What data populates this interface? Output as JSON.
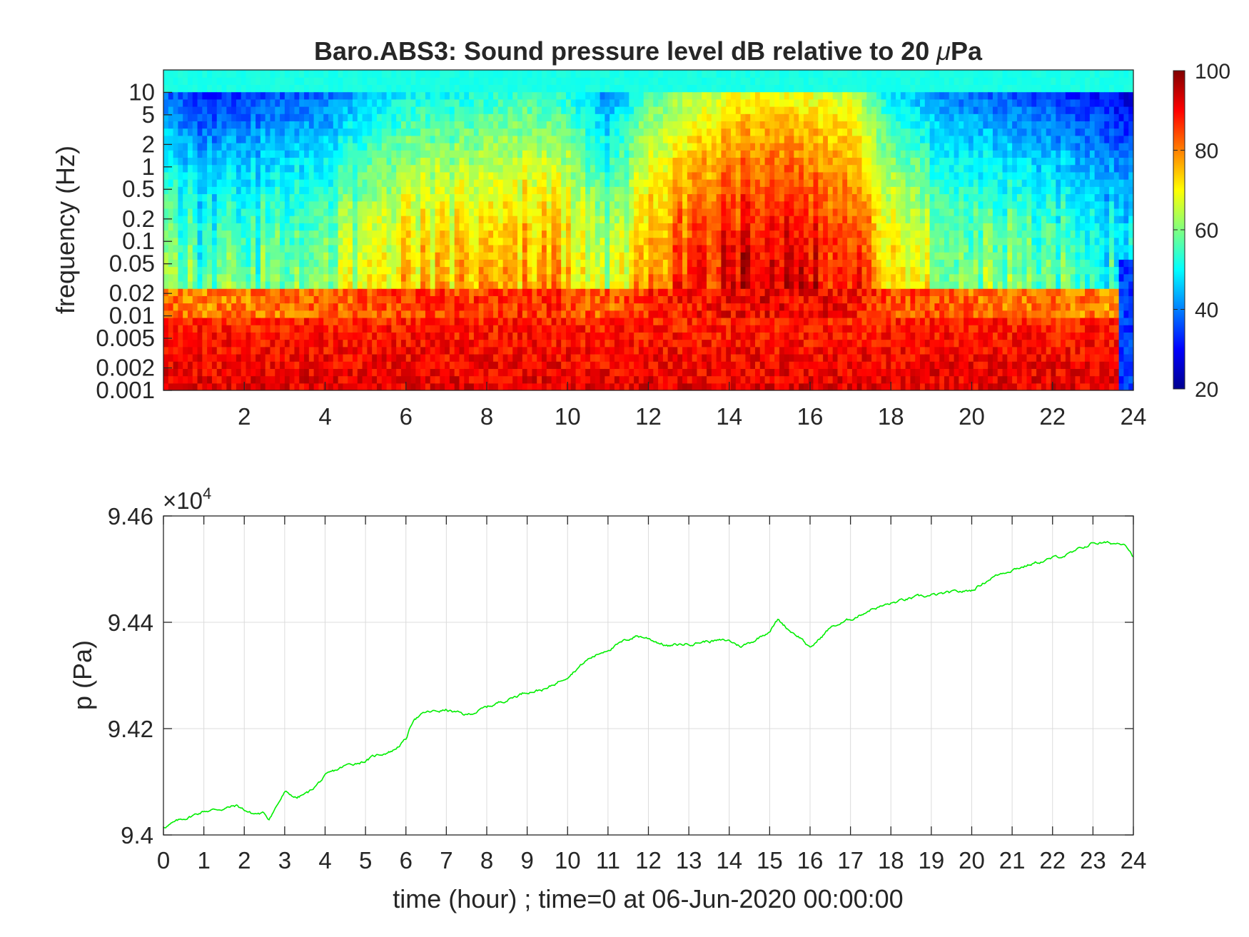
{
  "chart_data": [
    {
      "type": "heatmap",
      "title": "Baro.ABS3: Sound pressure level dB relative to 20 μPa",
      "title_parts": [
        "Baro.ABS3: Sound pressure level dB relative to 20 ",
        "μ",
        "Pa"
      ],
      "ylabel": "frequency (Hz)",
      "xlabel": "",
      "x_scale": "linear",
      "y_scale": "log",
      "xlim": [
        0,
        24
      ],
      "ylim": [
        0.001,
        20
      ],
      "x_ticks": [
        2,
        4,
        6,
        8,
        10,
        12,
        14,
        16,
        18,
        20,
        22,
        24
      ],
      "y_ticks": [
        0.001,
        0.002,
        0.005,
        0.01,
        0.02,
        0.05,
        0.1,
        0.2,
        0.5,
        1,
        2,
        5,
        10
      ],
      "y_tick_labels": [
        "0.001",
        "0.002",
        "0.005",
        "0.01",
        "0.02",
        "0.05",
        "0.1",
        "0.2",
        "0.5",
        "1",
        "2",
        "5",
        "10"
      ],
      "colormap": "jet",
      "clim": [
        20,
        100
      ],
      "colorbar_ticks": [
        20,
        40,
        60,
        80,
        100
      ],
      "colorbar_position": "right",
      "hourly_energy_profile_db": {
        "hour": [
          0,
          1,
          2,
          3,
          4,
          5,
          6,
          7,
          8,
          9,
          10,
          11,
          12,
          13,
          14,
          15,
          16,
          17,
          18,
          19,
          20,
          21,
          22,
          23,
          24
        ],
        "high_band_level_db": [
          52,
          46,
          48,
          50,
          52,
          58,
          64,
          64,
          66,
          68,
          66,
          54,
          70,
          76,
          82,
          84,
          82,
          80,
          62,
          56,
          52,
          50,
          48,
          46,
          40
        ]
      }
    },
    {
      "type": "line",
      "title": "",
      "xlabel": "time (hour) ; time=0 at 06-Jun-2020 00:00:00",
      "ylabel": "p (Pa)",
      "y_exponent_label": "×10",
      "y_exponent": "4",
      "xlim": [
        0,
        24
      ],
      "ylim": [
        94000,
        94600
      ],
      "x_ticks": [
        0,
        1,
        2,
        3,
        4,
        5,
        6,
        7,
        8,
        9,
        10,
        11,
        12,
        13,
        14,
        15,
        16,
        17,
        18,
        19,
        20,
        21,
        22,
        23,
        24
      ],
      "y_ticks": [
        94000,
        94200,
        94400,
        94600
      ],
      "y_tick_labels": [
        "9.4",
        "9.42",
        "9.44",
        "9.46"
      ],
      "grid": true,
      "line_color": "#00ee00",
      "series": [
        {
          "x": [
            0,
            0.5,
            1,
            1.5,
            1.8,
            2.2,
            2.5,
            2.6,
            3.0,
            3.3,
            3.6,
            4.0,
            4.5,
            5.0,
            5.3,
            5.7,
            6.0,
            6.2,
            6.5,
            7.0,
            7.5,
            8.0,
            8.5,
            9.0,
            9.5,
            10.0,
            10.5,
            11.0,
            11.3,
            11.7,
            12.0,
            12.5,
            13.0,
            13.5,
            14.0,
            14.3,
            14.6,
            15.0,
            15.2,
            15.5,
            15.8,
            16.0,
            16.5,
            17.0,
            17.5,
            18.0,
            18.5,
            19.0,
            19.5,
            20.0,
            20.5,
            21.0,
            21.5,
            22.0,
            22.5,
            23.0,
            23.5,
            23.8,
            24.0
          ],
          "y": [
            94015,
            94030,
            94045,
            94050,
            94055,
            94040,
            94040,
            94030,
            94080,
            94070,
            94080,
            94110,
            94130,
            94140,
            94150,
            94160,
            94180,
            94220,
            94230,
            94235,
            94225,
            94240,
            94255,
            94270,
            94275,
            94300,
            94330,
            94350,
            94360,
            94375,
            94370,
            94355,
            94360,
            94365,
            94365,
            94355,
            94365,
            94385,
            94405,
            94385,
            94370,
            94350,
            94390,
            94405,
            94425,
            94435,
            94445,
            94450,
            94455,
            94460,
            94485,
            94500,
            94510,
            94520,
            94530,
            94550,
            94548,
            94550,
            94525
          ]
        }
      ]
    }
  ]
}
